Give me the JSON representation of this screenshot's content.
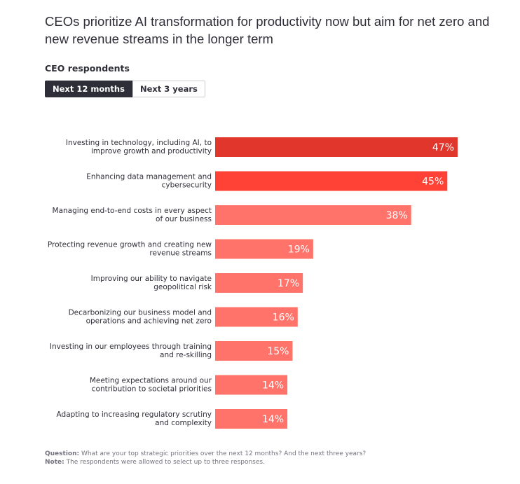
{
  "title": "CEOs prioritize AI transformation for productivity now but aim for net zero and new revenue streams in the longer term",
  "subtitle": "CEO respondents",
  "toggle": {
    "options": [
      "Next 12 months",
      "Next 3 years"
    ],
    "selected": "Next 12 months"
  },
  "chart_data": {
    "type": "bar",
    "orientation": "horizontal",
    "categories": [
      [
        "Investing in technology, including AI, to",
        "improve growth and productivity"
      ],
      [
        "Enhancing data management and",
        "cybersecurity"
      ],
      [
        "Managing end-to-end costs in every aspect",
        "of our business"
      ],
      [
        "Protecting revenue growth and creating new",
        "revenue streams"
      ],
      [
        "Improving our ability to navigate",
        "geopolitical risk"
      ],
      [
        "Decarbonizing our business model and",
        "operations and achieving net zero"
      ],
      [
        "Investing in our employees through training",
        "and re-skilling"
      ],
      [
        "Meeting expectations around our",
        "contribution to societal priorities"
      ],
      [
        "Adapting to increasing regulatory scrutiny",
        "and complexity"
      ]
    ],
    "values": [
      47,
      45,
      38,
      19,
      17,
      16,
      15,
      14,
      14
    ],
    "labels": [
      "47%",
      "45%",
      "38%",
      "19%",
      "17%",
      "16%",
      "15%",
      "14%",
      "14%"
    ],
    "colors": [
      "#e0362c",
      "#ff4136",
      "#ff736a",
      "#ff736a",
      "#ff736a",
      "#ff736a",
      "#ff736a",
      "#ff736a",
      "#ff736a"
    ],
    "xlim": [
      0,
      47
    ],
    "grid": false
  },
  "footnote": {
    "question_label": "Question:",
    "question": "What are your top strategic priorities over the next 12 months? And the next three years?",
    "note_label": "Note:",
    "note": "The respondents were allowed to select up to three responses."
  }
}
